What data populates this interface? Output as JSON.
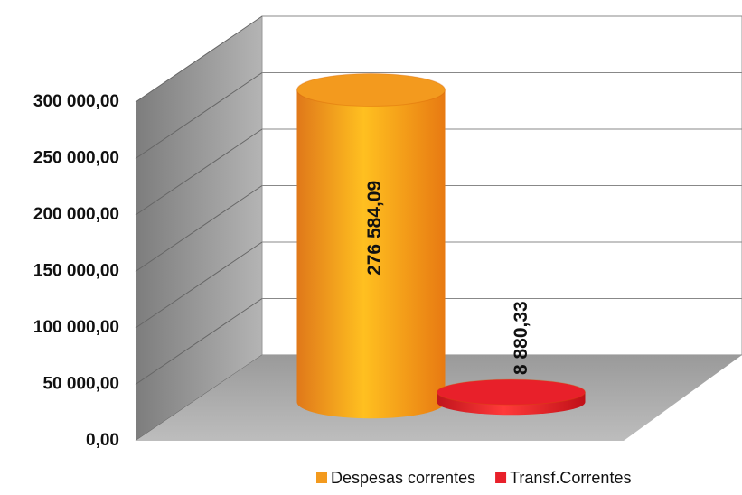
{
  "chart_data": {
    "type": "bar3d",
    "series": [
      {
        "name": "Despesas correntes",
        "color": "#f39a1e",
        "values": [
          276584.09
        ],
        "value_labels": [
          "276 584,09"
        ]
      },
      {
        "name": "Transf.Correntes",
        "color": "#e8202a",
        "values": [
          8880.33
        ],
        "value_labels": [
          "8 880,33"
        ]
      }
    ],
    "ylim": [
      0,
      300000
    ],
    "yticks": [
      {
        "value": 0,
        "label": "0,00"
      },
      {
        "value": 50000,
        "label": "50 000,00"
      },
      {
        "value": 100000,
        "label": "100 000,00"
      },
      {
        "value": 150000,
        "label": "150 000,00"
      },
      {
        "value": 200000,
        "label": "200 000,00"
      },
      {
        "value": 250000,
        "label": "250 000,00"
      },
      {
        "value": 300000,
        "label": "300 000,00"
      }
    ],
    "grid": true
  }
}
